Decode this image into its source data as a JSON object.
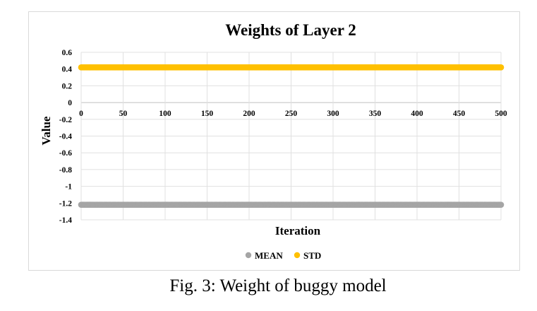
{
  "chart_data": {
    "type": "scatter",
    "title": "Weights of Layer 2",
    "xlabel": "Iteration",
    "ylabel": "Value",
    "xlim": [
      0,
      500
    ],
    "ylim": [
      -1.4,
      0.6
    ],
    "x_ticks": [
      "0",
      "50",
      "100",
      "150",
      "200",
      "250",
      "300",
      "350",
      "400",
      "450",
      "500"
    ],
    "y_ticks": [
      "0.6",
      "0.4",
      "0.2",
      "0",
      "-0.2",
      "-0.4",
      "-0.6",
      "-0.8",
      "-1",
      "-1.2",
      "-1.4"
    ],
    "grid": true,
    "legend_position": "bottom",
    "series": [
      {
        "name": "MEAN",
        "color": "#a5a5a5",
        "x": [
          0,
          500
        ],
        "y": [
          -1.22,
          -1.22
        ]
      },
      {
        "name": "STD",
        "color": "#ffc000",
        "x": [
          0,
          500
        ],
        "y": [
          0.42,
          0.42
        ]
      }
    ]
  },
  "caption": "Fig. 3: Weight of buggy model"
}
